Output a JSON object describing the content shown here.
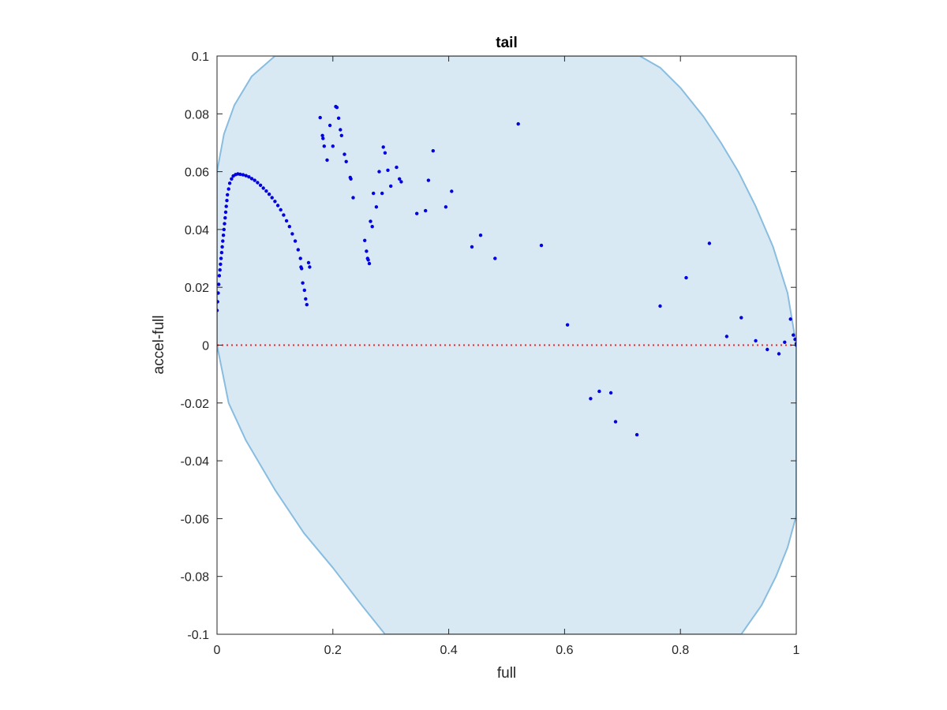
{
  "chart_data": {
    "type": "scatter",
    "title": "tail",
    "xlabel": "full",
    "ylabel": "accel-full",
    "xlim": [
      0,
      1
    ],
    "ylim": [
      -0.1,
      0.1
    ],
    "x_ticks": [
      "0",
      "0.2",
      "0.4",
      "0.6",
      "0.8",
      "1"
    ],
    "y_ticks": [
      "-0.1",
      "-0.08",
      "-0.06",
      "-0.04",
      "-0.02",
      "0",
      "0.02",
      "0.04",
      "0.06",
      "0.08",
      "0.1"
    ],
    "grid": false,
    "legend": false,
    "colors": {
      "points": "#0000e0",
      "region_fill": "#d9e9f4",
      "region_edge": "#88bde0",
      "zero_line": "#ff2020",
      "axes": "#262626"
    },
    "region": {
      "description_type": "filled-boundary",
      "boundary": [
        [
          0.1,
          0.1
        ],
        [
          0.06,
          0.093
        ],
        [
          0.03,
          0.083
        ],
        [
          0.012,
          0.073
        ],
        [
          0.0,
          0.06
        ],
        [
          0.0,
          0.0
        ],
        [
          0.02,
          -0.02
        ],
        [
          0.05,
          -0.033
        ],
        [
          0.1,
          -0.05
        ],
        [
          0.15,
          -0.065
        ],
        [
          0.2,
          -0.077
        ],
        [
          0.25,
          -0.09
        ],
        [
          0.29,
          -0.1
        ],
        [
          0.905,
          -0.1
        ],
        [
          0.94,
          -0.09
        ],
        [
          0.965,
          -0.08
        ],
        [
          0.985,
          -0.07
        ],
        [
          1.0,
          -0.059
        ],
        [
          1.0,
          0.0
        ],
        [
          0.985,
          0.018
        ],
        [
          0.96,
          0.034
        ],
        [
          0.93,
          0.048
        ],
        [
          0.9,
          0.06
        ],
        [
          0.87,
          0.07
        ],
        [
          0.84,
          0.079
        ],
        [
          0.8,
          0.089
        ],
        [
          0.765,
          0.096
        ],
        [
          0.73,
          0.1
        ]
      ]
    },
    "reference_line": {
      "y": 0,
      "style": "dotted"
    },
    "points": [
      [
        0.0,
        0.012
      ],
      [
        0.001,
        0.015
      ],
      [
        0.002,
        0.018
      ],
      [
        0.003,
        0.021
      ],
      [
        0.004,
        0.024
      ],
      [
        0.005,
        0.026
      ],
      [
        0.006,
        0.028
      ],
      [
        0.007,
        0.03
      ],
      [
        0.008,
        0.032
      ],
      [
        0.009,
        0.034
      ],
      [
        0.01,
        0.036
      ],
      [
        0.011,
        0.038
      ],
      [
        0.012,
        0.04
      ],
      [
        0.013,
        0.042
      ],
      [
        0.014,
        0.044
      ],
      [
        0.015,
        0.046
      ],
      [
        0.016,
        0.048
      ],
      [
        0.017,
        0.05
      ],
      [
        0.018,
        0.052
      ],
      [
        0.02,
        0.054
      ],
      [
        0.022,
        0.056
      ],
      [
        0.025,
        0.0575
      ],
      [
        0.028,
        0.0585
      ],
      [
        0.032,
        0.059
      ],
      [
        0.036,
        0.0592
      ],
      [
        0.04,
        0.0591
      ],
      [
        0.045,
        0.0589
      ],
      [
        0.05,
        0.0586
      ],
      [
        0.055,
        0.0582
      ],
      [
        0.06,
        0.0576
      ],
      [
        0.065,
        0.057
      ],
      [
        0.07,
        0.0562
      ],
      [
        0.075,
        0.0553
      ],
      [
        0.08,
        0.0543
      ],
      [
        0.085,
        0.0533
      ],
      [
        0.09,
        0.0522
      ],
      [
        0.095,
        0.051
      ],
      [
        0.1,
        0.0497
      ],
      [
        0.105,
        0.0483
      ],
      [
        0.11,
        0.0468
      ],
      [
        0.115,
        0.045
      ],
      [
        0.12,
        0.043
      ],
      [
        0.125,
        0.041
      ],
      [
        0.13,
        0.0385
      ],
      [
        0.135,
        0.036
      ],
      [
        0.14,
        0.033
      ],
      [
        0.144,
        0.03
      ],
      [
        0.145,
        0.027
      ],
      [
        0.146,
        0.0265
      ],
      [
        0.148,
        0.0215
      ],
      [
        0.151,
        0.019
      ],
      [
        0.153,
        0.016
      ],
      [
        0.155,
        0.014
      ],
      [
        0.158,
        0.0285
      ],
      [
        0.16,
        0.027
      ],
      [
        0.178,
        0.0787
      ],
      [
        0.182,
        0.0725
      ],
      [
        0.183,
        0.0715
      ],
      [
        0.185,
        0.0688
      ],
      [
        0.19,
        0.064
      ],
      [
        0.195,
        0.076
      ],
      [
        0.2,
        0.0688
      ],
      [
        0.205,
        0.0825
      ],
      [
        0.207,
        0.0822
      ],
      [
        0.21,
        0.0785
      ],
      [
        0.213,
        0.0745
      ],
      [
        0.215,
        0.0725
      ],
      [
        0.22,
        0.066
      ],
      [
        0.223,
        0.0635
      ],
      [
        0.23,
        0.058
      ],
      [
        0.231,
        0.0575
      ],
      [
        0.235,
        0.051
      ],
      [
        0.255,
        0.0362
      ],
      [
        0.258,
        0.0325
      ],
      [
        0.26,
        0.03
      ],
      [
        0.261,
        0.0295
      ],
      [
        0.263,
        0.0282
      ],
      [
        0.265,
        0.0428
      ],
      [
        0.268,
        0.041
      ],
      [
        0.27,
        0.0525
      ],
      [
        0.275,
        0.0478
      ],
      [
        0.28,
        0.06
      ],
      [
        0.285,
        0.0525
      ],
      [
        0.287,
        0.0685
      ],
      [
        0.29,
        0.0665
      ],
      [
        0.295,
        0.0605
      ],
      [
        0.3,
        0.055
      ],
      [
        0.31,
        0.0615
      ],
      [
        0.315,
        0.0575
      ],
      [
        0.318,
        0.0565
      ],
      [
        0.345,
        0.0455
      ],
      [
        0.36,
        0.0465
      ],
      [
        0.365,
        0.057
      ],
      [
        0.373,
        0.0672
      ],
      [
        0.395,
        0.0478
      ],
      [
        0.405,
        0.0532
      ],
      [
        0.44,
        0.034
      ],
      [
        0.455,
        0.038
      ],
      [
        0.48,
        0.03
      ],
      [
        0.52,
        0.0765
      ],
      [
        0.56,
        0.0345
      ],
      [
        0.605,
        0.007
      ],
      [
        0.645,
        -0.0185
      ],
      [
        0.66,
        -0.016
      ],
      [
        0.68,
        -0.0165
      ],
      [
        0.688,
        -0.0265
      ],
      [
        0.725,
        -0.031
      ],
      [
        0.765,
        0.0135
      ],
      [
        0.81,
        0.0233
      ],
      [
        0.85,
        0.0352
      ],
      [
        0.88,
        0.003
      ],
      [
        0.905,
        0.0095
      ],
      [
        0.93,
        0.0015
      ],
      [
        0.95,
        -0.0015
      ],
      [
        0.97,
        -0.003
      ],
      [
        0.98,
        0.001
      ],
      [
        0.99,
        0.009
      ],
      [
        0.995,
        0.0035
      ],
      [
        0.998,
        0.002
      ],
      [
        1.0,
        0.0005
      ],
      [
        1.0,
        0.0
      ]
    ]
  }
}
